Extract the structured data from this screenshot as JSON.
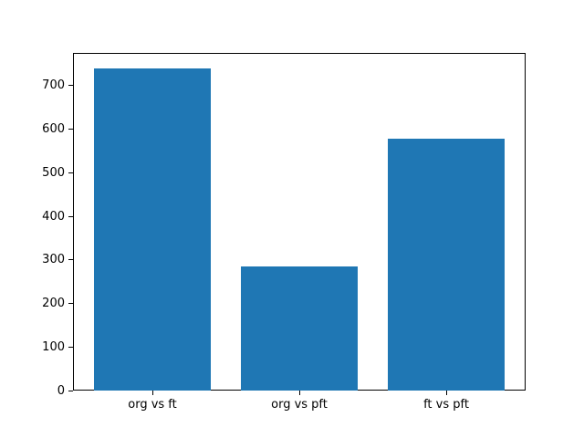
{
  "chart_data": {
    "type": "bar",
    "title": "",
    "xlabel": "",
    "ylabel": "",
    "categories": [
      "org vs ft",
      "org vs pft",
      "ft vs pft"
    ],
    "values": [
      740,
      285,
      578
    ],
    "yticks": [
      0,
      100,
      200,
      300,
      400,
      500,
      600,
      700
    ],
    "ylim": [
      0,
      775
    ],
    "bar_color": "#1f77b4",
    "axis_color": "#000000",
    "background_color": "#ffffff",
    "grid": false,
    "legend": null
  }
}
